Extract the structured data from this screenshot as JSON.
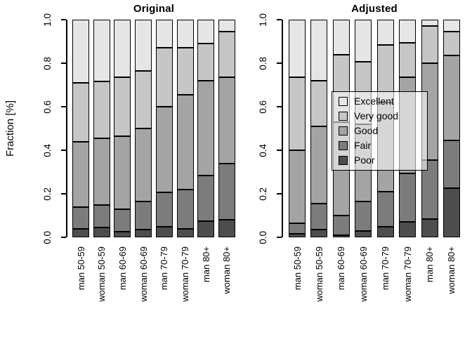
{
  "figure": {
    "ylabel": "Fraction [%]",
    "yticks": [
      "0.0",
      "0.2",
      "0.4",
      "0.6",
      "0.8",
      "1.0"
    ],
    "palette": {
      "Excellent": "#E6E6E6",
      "Very good": "#C6C6C6",
      "Good": "#A4A4A4",
      "Fair": "#7C7C7C",
      "Poor": "#4D4D4D"
    },
    "legend": {
      "position": "inside-right-panel",
      "entries": [
        {
          "label": "Excellent",
          "color": "#E6E6E6"
        },
        {
          "label": "Very good",
          "color": "#C6C6C6"
        },
        {
          "label": "Good",
          "color": "#A4A4A4"
        },
        {
          "label": "Fair",
          "color": "#7C7C7C"
        },
        {
          "label": "Poor",
          "color": "#4D4D4D"
        }
      ]
    }
  },
  "chart_data": [
    {
      "type": "bar",
      "stacked": true,
      "title": "Original",
      "ylabel": "Fraction [%]",
      "xlabel": "",
      "ylim": [
        0,
        1
      ],
      "grid": false,
      "categories": [
        "man 50-59",
        "woman 50-59",
        "man 60-69",
        "woman 60-69",
        "man 70-79",
        "woman 70-79",
        "man 80+",
        "woman 80+"
      ],
      "series": [
        {
          "name": "Poor",
          "color": "#4D4D4D",
          "values": [
            0.04,
            0.045,
            0.025,
            0.035,
            0.05,
            0.04,
            0.075,
            0.08
          ]
        },
        {
          "name": "Fair",
          "color": "#7C7C7C",
          "values": [
            0.1,
            0.105,
            0.105,
            0.13,
            0.155,
            0.18,
            0.21,
            0.26
          ]
        },
        {
          "name": "Good",
          "color": "#A4A4A4",
          "values": [
            0.3,
            0.305,
            0.335,
            0.335,
            0.395,
            0.435,
            0.435,
            0.395
          ]
        },
        {
          "name": "Very good",
          "color": "#C6C6C6",
          "values": [
            0.27,
            0.26,
            0.27,
            0.265,
            0.27,
            0.215,
            0.17,
            0.21
          ]
        },
        {
          "name": "Excellent",
          "color": "#E6E6E6",
          "values": [
            0.29,
            0.285,
            0.265,
            0.235,
            0.13,
            0.13,
            0.11,
            0.055
          ]
        }
      ]
    },
    {
      "type": "bar",
      "stacked": true,
      "title": "Adjusted",
      "ylabel": "",
      "xlabel": "",
      "ylim": [
        0,
        1
      ],
      "grid": false,
      "categories": [
        "man 50-59",
        "woman 50-59",
        "man 60-69",
        "woman 60-69",
        "man 70-79",
        "woman 70-79",
        "man 80+",
        "woman 80+"
      ],
      "series": [
        {
          "name": "Poor",
          "color": "#4D4D4D",
          "values": [
            0.015,
            0.035,
            0.01,
            0.03,
            0.05,
            0.07,
            0.085,
            0.225
          ]
        },
        {
          "name": "Fair",
          "color": "#7C7C7C",
          "values": [
            0.05,
            0.12,
            0.09,
            0.135,
            0.16,
            0.225,
            0.27,
            0.22
          ]
        },
        {
          "name": "Good",
          "color": "#A4A4A4",
          "values": [
            0.335,
            0.355,
            0.43,
            0.355,
            0.41,
            0.44,
            0.445,
            0.39
          ]
        },
        {
          "name": "Very good",
          "color": "#C6C6C6",
          "values": [
            0.335,
            0.21,
            0.31,
            0.285,
            0.265,
            0.16,
            0.17,
            0.11
          ]
        },
        {
          "name": "Excellent",
          "color": "#E6E6E6",
          "values": [
            0.265,
            0.28,
            0.16,
            0.195,
            0.115,
            0.105,
            0.03,
            0.055
          ]
        }
      ]
    }
  ]
}
